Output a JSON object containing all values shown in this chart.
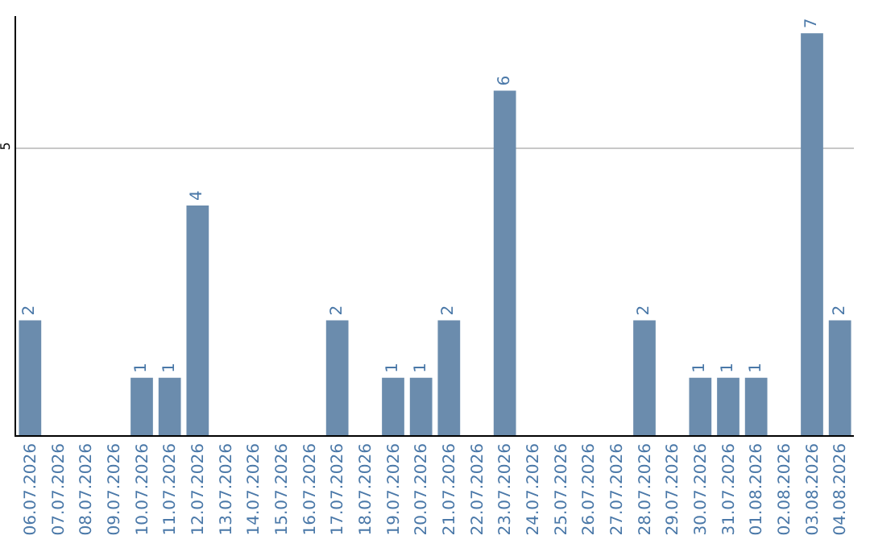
{
  "chart_data": {
    "type": "bar",
    "categories": [
      "06.07.2026",
      "07.07.2026",
      "08.07.2026",
      "09.07.2026",
      "10.07.2026",
      "11.07.2026",
      "12.07.2026",
      "13.07.2026",
      "14.07.2026",
      "15.07.2026",
      "16.07.2026",
      "17.07.2026",
      "18.07.2026",
      "19.07.2026",
      "20.07.2026",
      "21.07.2026",
      "22.07.2026",
      "23.07.2026",
      "24.07.2026",
      "25.07.2026",
      "26.07.2026",
      "27.07.2026",
      "28.07.2026",
      "29.07.2026",
      "30.07.2026",
      "31.07.2026",
      "01.08.2026",
      "02.08.2026",
      "03.08.2026",
      "04.08.2026"
    ],
    "values": [
      2,
      0,
      0,
      0,
      1,
      1,
      4,
      0,
      0,
      0,
      0,
      2,
      0,
      1,
      1,
      2,
      0,
      6,
      0,
      0,
      0,
      0,
      2,
      0,
      1,
      1,
      1,
      0,
      7,
      2
    ],
    "value_labels": [
      "2",
      null,
      null,
      null,
      "1",
      "1",
      "4",
      null,
      null,
      null,
      null,
      "2",
      null,
      "1",
      "1",
      "2",
      null,
      "6",
      null,
      null,
      null,
      null,
      "2",
      null,
      "1",
      "1",
      "1",
      null,
      "7",
      "2"
    ],
    "color": "#6b8cad",
    "ylim": [
      0,
      7.3
    ],
    "yticks": [
      5
    ],
    "grid": "y",
    "legend": false
  }
}
